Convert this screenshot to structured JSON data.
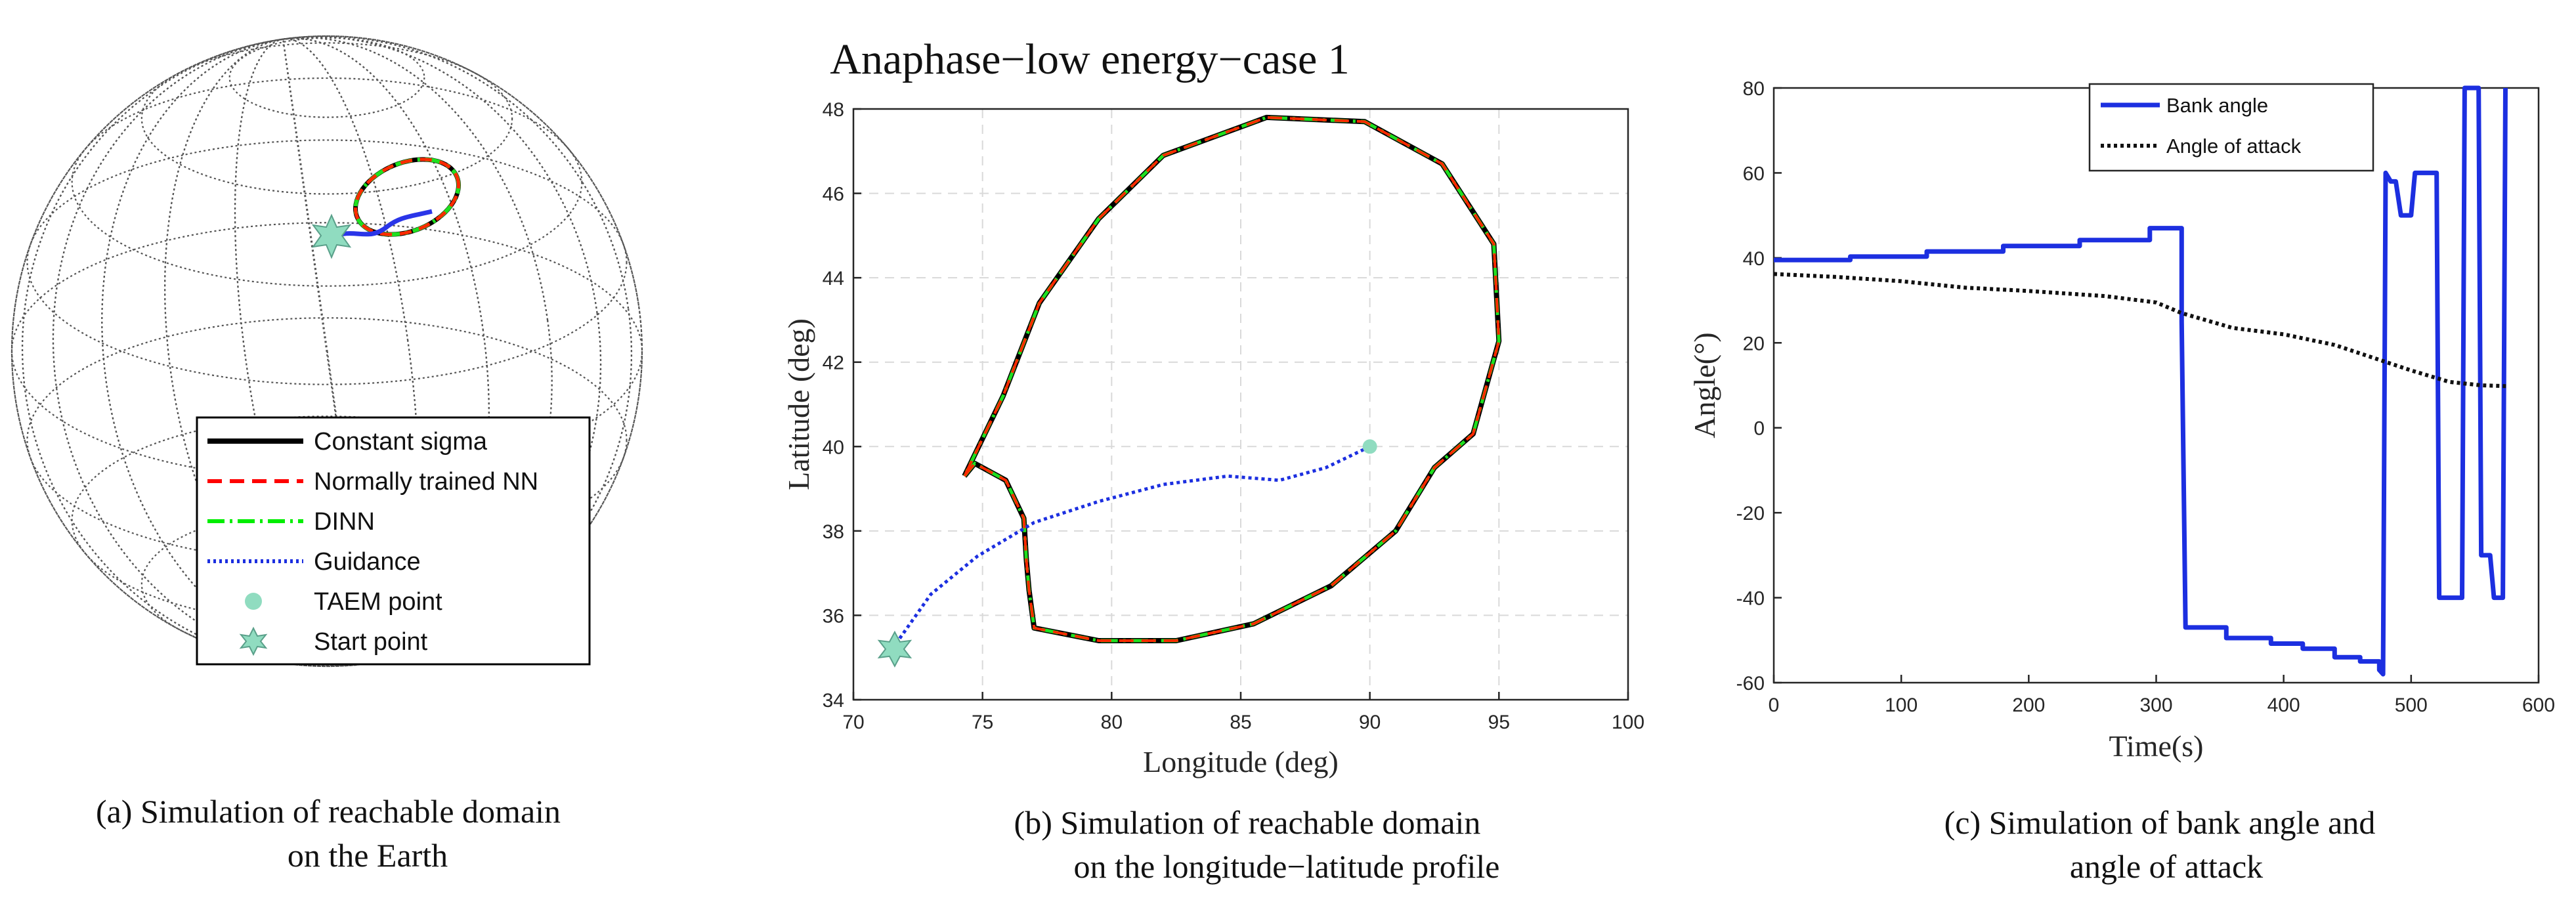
{
  "chart_data": [
    {
      "id": "a",
      "type": "line",
      "title": "",
      "caption": [
        "(a)   Simulation of reachable domain",
        "on the Earth"
      ],
      "legend": [
        {
          "label": "Constant sigma",
          "color": "#000000",
          "style": "solid"
        },
        {
          "label": "Normally trained NN",
          "color": "#ff0000",
          "style": "dashed"
        },
        {
          "label": "DINN",
          "color": "#00ee00",
          "style": "dashdot"
        },
        {
          "label": "Guidance",
          "color": "#1c2fe0",
          "style": "dotted"
        },
        {
          "label": "TAEM point",
          "color": "#90dcc0",
          "style": "marker-circle"
        },
        {
          "label": "Start point",
          "color": "#90dcc0",
          "style": "marker-star"
        }
      ],
      "legend_position": "bottom-right"
    },
    {
      "id": "b",
      "type": "line",
      "title": "Anaphase−low energy−case 1",
      "xlabel": "Longitude (deg)",
      "ylabel": "Latitude (deg)",
      "xlim": [
        70,
        100
      ],
      "ylim": [
        34,
        48
      ],
      "xticks": [
        70,
        75,
        80,
        85,
        90,
        95,
        100
      ],
      "yticks": [
        34,
        36,
        38,
        40,
        42,
        44,
        46,
        48
      ],
      "grid": true,
      "caption": [
        "(b)   Simulation of reachable domain",
        "on the longitude−latitude profile"
      ],
      "boundary": [
        [
          74.3,
          39.3
        ],
        [
          74.7,
          39.6
        ],
        [
          75.9,
          39.2
        ],
        [
          76.6,
          38.3
        ],
        [
          76.7,
          37.3
        ],
        [
          76.8,
          36.6
        ],
        [
          77.0,
          35.7
        ],
        [
          79.5,
          35.4
        ],
        [
          82.5,
          35.4
        ],
        [
          85.5,
          35.8
        ],
        [
          88.5,
          36.7
        ],
        [
          91.0,
          38.0
        ],
        [
          92.5,
          39.5
        ],
        [
          94.0,
          40.3
        ],
        [
          95.0,
          42.5
        ],
        [
          94.8,
          44.8
        ],
        [
          92.8,
          46.7
        ],
        [
          89.8,
          47.7
        ],
        [
          86.0,
          47.8
        ],
        [
          82.0,
          46.9
        ],
        [
          79.5,
          45.4
        ],
        [
          77.2,
          43.4
        ],
        [
          75.8,
          41.2
        ],
        [
          74.3,
          39.3
        ]
      ],
      "series": [
        {
          "name": "Constant sigma",
          "color": "#000000",
          "style": "solid"
        },
        {
          "name": "Normally trained NN",
          "color": "#ff2a00",
          "style": "dashed"
        },
        {
          "name": "DINN",
          "color": "#1fe01f",
          "style": "dashdot"
        },
        {
          "name": "Guidance",
          "color": "#1c2fe0",
          "style": "dotted",
          "points": [
            [
              71.5,
              35.2
            ],
            [
              73.0,
              36.5
            ],
            [
              74.8,
              37.4
            ],
            [
              77.0,
              38.2
            ],
            [
              79.5,
              38.7
            ],
            [
              82.0,
              39.1
            ],
            [
              84.5,
              39.3
            ],
            [
              86.5,
              39.2
            ],
            [
              88.3,
              39.5
            ],
            [
              90.0,
              40.0
            ]
          ]
        }
      ],
      "taem_point": [
        90.0,
        40.0
      ],
      "start_point": [
        71.6,
        35.2
      ]
    },
    {
      "id": "c",
      "type": "line",
      "title": "",
      "xlabel": "Time(s)",
      "ylabel": "Angle(°)",
      "xlim": [
        0,
        600
      ],
      "ylim": [
        -60,
        80
      ],
      "xticks": [
        0,
        100,
        200,
        300,
        400,
        500,
        600
      ],
      "yticks": [
        -60,
        -40,
        -20,
        0,
        20,
        40,
        60,
        80
      ],
      "grid": false,
      "legend_position": "top-right",
      "caption": [
        "(c)   Simulation of bank angle and",
        "angle of attack"
      ],
      "series": [
        {
          "name": "Bank angle",
          "color": "#1c2fe0",
          "style": "solid",
          "points": [
            [
              0,
              39.5
            ],
            [
              60,
              39.5
            ],
            [
              60,
              40.3
            ],
            [
              120,
              40.3
            ],
            [
              120,
              41.5
            ],
            [
              180,
              41.5
            ],
            [
              180,
              42.8
            ],
            [
              240,
              42.8
            ],
            [
              240,
              44.2
            ],
            [
              295,
              44.2
            ],
            [
              295,
              47
            ],
            [
              320,
              47
            ],
            [
              320,
              25
            ],
            [
              323,
              -47
            ],
            [
              355,
              -47
            ],
            [
              355,
              -49.5
            ],
            [
              390,
              -49.5
            ],
            [
              390,
              -50.8
            ],
            [
              415,
              -50.8
            ],
            [
              415,
              -52
            ],
            [
              440,
              -52
            ],
            [
              440,
              -54
            ],
            [
              460,
              -54
            ],
            [
              460,
              -55
            ],
            [
              475,
              -55
            ],
            [
              475,
              -57
            ],
            [
              478,
              -58
            ],
            [
              480,
              60
            ],
            [
              484,
              58
            ],
            [
              488,
              58
            ],
            [
              492,
              50
            ],
            [
              500,
              50
            ],
            [
              503,
              60
            ],
            [
              520,
              60
            ],
            [
              522,
              -40
            ],
            [
              540,
              -40
            ],
            [
              542,
              80
            ],
            [
              553,
              80
            ],
            [
              555,
              -30
            ],
            [
              562,
              -30
            ],
            [
              565,
              -40
            ],
            [
              572,
              -40
            ],
            [
              574,
              80
            ]
          ]
        },
        {
          "name": "Angle of attack",
          "color": "#111111",
          "style": "dotted",
          "points": [
            [
              0,
              36.2
            ],
            [
              50,
              35.5
            ],
            [
              100,
              34.5
            ],
            [
              150,
              33.0
            ],
            [
              200,
              32.2
            ],
            [
              260,
              31.0
            ],
            [
              300,
              29.5
            ],
            [
              320,
              27.0
            ],
            [
              360,
              23.5
            ],
            [
              400,
              22.0
            ],
            [
              440,
              19.5
            ],
            [
              470,
              16.5
            ],
            [
              500,
              13.5
            ],
            [
              530,
              10.8
            ],
            [
              555,
              10.0
            ],
            [
              575,
              9.8
            ]
          ]
        }
      ]
    }
  ]
}
